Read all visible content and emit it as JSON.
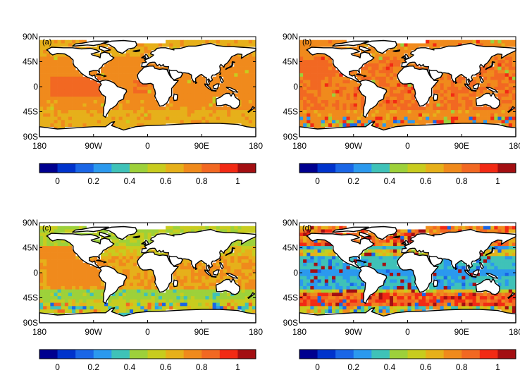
{
  "panels": [
    {
      "label": "(a)",
      "mode": "a"
    },
    {
      "label": "(b)",
      "mode": "b"
    },
    {
      "label": "(c)",
      "mode": "c"
    },
    {
      "label": "(d)",
      "mode": "d"
    }
  ],
  "axes": {
    "lat_ticks": [
      "90N",
      "45N",
      "0",
      "45S",
      "90S"
    ],
    "lon_ticks": [
      "180",
      "90W",
      "0",
      "90E",
      "180"
    ]
  },
  "colorbar": {
    "range": [
      -0.1,
      1.1
    ],
    "colors": [
      "#00008f",
      "#0033cc",
      "#1a66e6",
      "#2b99ee",
      "#3fc2b8",
      "#9dd13a",
      "#c8cc1e",
      "#e6b01a",
      "#f08a1c",
      "#f26822",
      "#f22a14",
      "#a30f12"
    ],
    "tick_labels": [
      "0",
      "0.2",
      "0.4",
      "0.6",
      "0.8",
      "1"
    ]
  },
  "colors": {
    "land": "#ffffff",
    "coast": "#000000"
  }
}
